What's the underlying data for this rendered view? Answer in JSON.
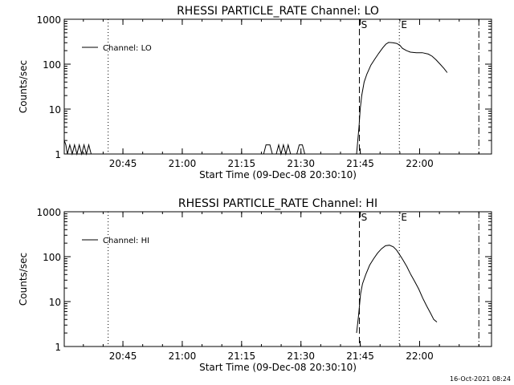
{
  "footer": {
    "timestamp": "16-Oct-2021 08:24"
  },
  "colors": {
    "background": "#ffffff",
    "foreground": "#000000"
  },
  "chart_data": [
    {
      "type": "line",
      "title": "RHESSI PARTICLE_RATE Channel: LO",
      "xlabel": "Start Time (09-Dec-08 20:30:10)",
      "ylabel": "Counts/sec",
      "x_unit": "minutes after 20:30:10",
      "xlim": [
        0,
        108
      ],
      "ylim": [
        1,
        1000
      ],
      "yscale": "log",
      "x_tick_labels": [
        "20:45",
        "21:00",
        "21:15",
        "21:30",
        "21:45",
        "22:00"
      ],
      "x_tick_values": [
        14.83,
        29.83,
        44.83,
        59.83,
        74.83,
        89.83
      ],
      "y_tick_labels": [
        "1",
        "10",
        "100",
        "1000"
      ],
      "y_tick_values": [
        1,
        10,
        100,
        1000
      ],
      "legend": {
        "entries": [
          "Channel: LO"
        ],
        "placement": "top-left"
      },
      "markers": [
        {
          "label": "",
          "x": 11.1,
          "style": "dotted"
        },
        {
          "label": "S",
          "x": 74.6,
          "style": "dashed"
        },
        {
          "label": "E",
          "x": 84.7,
          "style": "dotted"
        },
        {
          "label": "",
          "x": 104.8,
          "style": "dashdot"
        }
      ],
      "series": [
        {
          "name": "Channel: LO",
          "segments": [
            {
              "x": [
                0,
                0.4,
                0.8,
                1.4,
                2.0,
                2.6,
                3.2,
                3.8,
                4.4,
                5.0,
                5.6,
                6.2,
                6.8
              ],
              "y": [
                2,
                1.6,
                1,
                1.6,
                1,
                1.6,
                1,
                1.6,
                1,
                1.6,
                1,
                1.6,
                1
              ]
            },
            {
              "x": [
                50.4,
                51.0,
                52.0,
                52.6
              ],
              "y": [
                1,
                1.6,
                1.6,
                1
              ]
            },
            {
              "x": [
                53.6,
                54.2,
                54.8,
                55.4,
                56.0,
                56.6,
                57.2
              ],
              "y": [
                1,
                1.6,
                1,
                1.6,
                1,
                1.6,
                1
              ]
            },
            {
              "x": [
                58.8,
                59.4,
                60.2,
                60.8
              ],
              "y": [
                1,
                1.6,
                1.6,
                1
              ]
            },
            {
              "x": [
                73.9,
                74.2,
                74.5,
                74.8,
                75.2,
                75.8,
                76.5,
                77.5,
                78.5,
                79.5,
                80.5,
                81.3,
                82,
                83,
                84,
                84.8,
                85.5,
                86.5,
                87.5,
                89,
                90.5,
                92,
                93,
                94,
                95,
                96,
                96.8
              ],
              "y": [
                1,
                2,
                4,
                10,
                20,
                40,
                60,
                95,
                130,
                175,
                230,
                280,
                305,
                300,
                290,
                265,
                225,
                200,
                185,
                180,
                180,
                168,
                150,
                125,
                100,
                80,
                65
              ]
            }
          ]
        }
      ]
    },
    {
      "type": "line",
      "title": "RHESSI PARTICLE_RATE Channel: HI",
      "xlabel": "Start Time (09-Dec-08 20:30:10)",
      "ylabel": "Counts/sec",
      "x_unit": "minutes after 20:30:10",
      "xlim": [
        0,
        108
      ],
      "ylim": [
        1,
        1000
      ],
      "yscale": "log",
      "x_tick_labels": [
        "20:45",
        "21:00",
        "21:15",
        "21:30",
        "21:45",
        "22:00"
      ],
      "x_tick_values": [
        14.83,
        29.83,
        44.83,
        59.83,
        74.83,
        89.83
      ],
      "y_tick_labels": [
        "1",
        "10",
        "100",
        "1000"
      ],
      "y_tick_values": [
        1,
        10,
        100,
        1000
      ],
      "legend": {
        "entries": [
          "Channel: HI"
        ],
        "placement": "top-left"
      },
      "markers": [
        {
          "label": "",
          "x": 11.1,
          "style": "dotted"
        },
        {
          "label": "S",
          "x": 74.6,
          "style": "dashed"
        },
        {
          "label": "E",
          "x": 84.7,
          "style": "dotted"
        },
        {
          "label": "",
          "x": 104.8,
          "style": "dashdot"
        }
      ],
      "series": [
        {
          "name": "Channel: HI",
          "segments": [
            {
              "x": [
                73.9,
                74.4,
                74.9,
                75.4,
                76.2,
                77.2,
                78.2,
                79.2,
                80.2,
                81.2,
                82.2,
                83.2,
                84.0,
                84.8,
                85.6,
                86.6,
                87.6,
                88.6,
                89.6,
                90.6,
                91.6,
                92.6,
                93.4,
                94.2
              ],
              "y": [
                2,
                5,
                15,
                25,
                40,
                65,
                90,
                120,
                150,
                175,
                180,
                165,
                140,
                110,
                85,
                60,
                40,
                28,
                19,
                12,
                8,
                5.5,
                4,
                3.5
              ]
            }
          ]
        }
      ]
    }
  ]
}
